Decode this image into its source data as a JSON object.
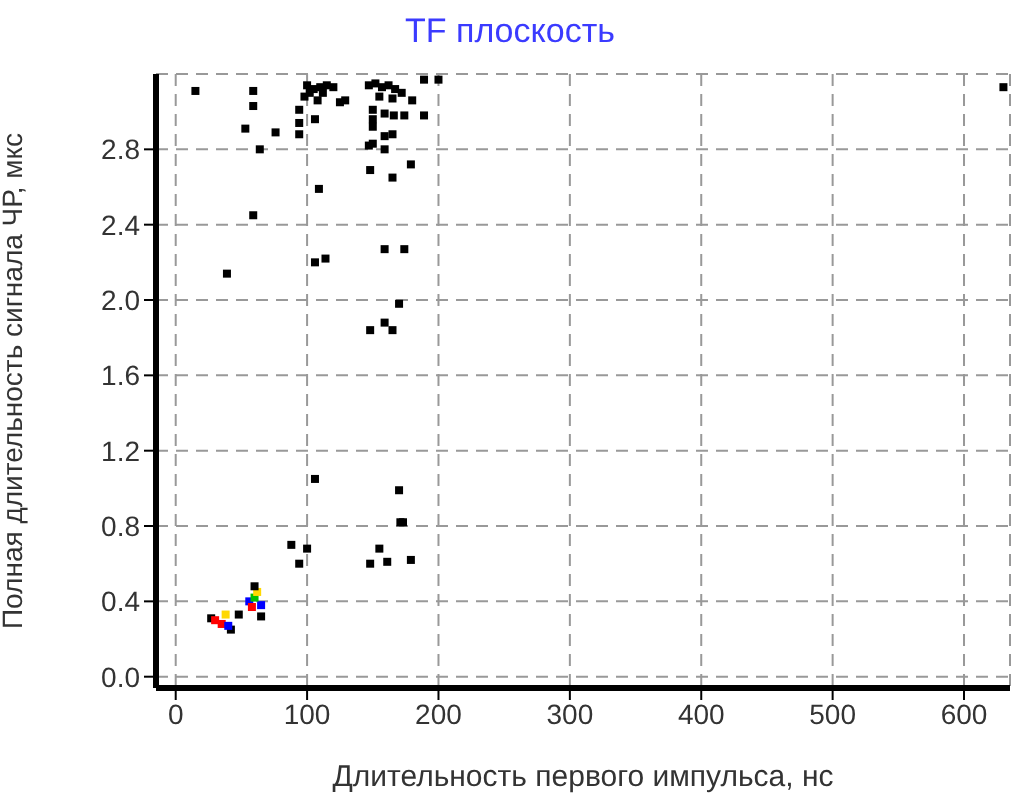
{
  "chart_data": {
    "type": "scatter",
    "title": "TF плоскость",
    "xlabel": "Длительность первого импульса, нс",
    "ylabel": "Полная длительность сигнала ЧР, мкс",
    "xlim": [
      -15,
      635
    ],
    "xticks": [
      0,
      100,
      200,
      300,
      400,
      500,
      600
    ],
    "ylim": [
      -0.06,
      3.2
    ],
    "yticks": [
      {
        "value": 0,
        "label": "0.0"
      },
      0.4,
      0.8,
      1.2,
      1.6,
      {
        "value": 2,
        "label": "2.0"
      },
      2.4,
      2.8
    ],
    "grid": true,
    "marker": "square",
    "x": [
      15,
      59,
      59,
      53,
      76,
      64,
      100,
      105,
      110,
      115,
      120,
      98,
      108,
      102,
      112,
      125,
      129,
      94,
      94,
      94,
      106,
      109,
      59,
      106,
      114,
      39,
      147,
      152,
      157,
      162,
      167,
      172,
      155,
      165,
      189,
      200,
      180,
      150,
      150,
      150,
      150,
      159,
      166,
      174,
      189,
      165,
      159,
      159,
      147,
      148,
      165,
      179,
      159,
      174,
      170,
      148,
      159,
      165,
      106,
      170,
      171,
      173,
      88,
      100,
      94,
      155,
      148,
      161,
      179,
      48,
      27,
      42,
      30,
      35,
      38,
      40,
      56,
      65,
      60,
      62,
      58,
      60,
      65,
      630
    ],
    "values": [
      3.11,
      3.11,
      3.03,
      2.91,
      2.89,
      2.8,
      3.14,
      3.12,
      3.13,
      3.14,
      3.13,
      3.08,
      3.06,
      3.1,
      3.1,
      3.05,
      3.06,
      3.01,
      2.94,
      2.88,
      2.96,
      2.59,
      2.45,
      2.2,
      2.22,
      2.14,
      3.14,
      3.15,
      3.13,
      3.14,
      3.12,
      3.1,
      3.08,
      3.07,
      3.17,
      3.17,
      3.06,
      3.01,
      2.96,
      2.92,
      2.83,
      2.99,
      2.98,
      2.98,
      2.98,
      2.88,
      2.87,
      2.8,
      2.82,
      2.69,
      2.65,
      2.72,
      2.27,
      2.27,
      1.98,
      1.84,
      1.88,
      1.84,
      1.05,
      0.99,
      0.82,
      0.82,
      0.7,
      0.68,
      0.6,
      0.68,
      0.6,
      0.61,
      0.62,
      0.33,
      0.31,
      0.25,
      0.3,
      0.28,
      0.33,
      0.27,
      0.4,
      0.38,
      0.42,
      0.45,
      0.37,
      0.48,
      0.32,
      3.13
    ],
    "colors": [
      "#000000",
      "#000000",
      "#000000",
      "#000000",
      "#000000",
      "#000000",
      "#000000",
      "#000000",
      "#000000",
      "#000000",
      "#000000",
      "#000000",
      "#000000",
      "#000000",
      "#000000",
      "#000000",
      "#000000",
      "#000000",
      "#000000",
      "#000000",
      "#000000",
      "#000000",
      "#000000",
      "#000000",
      "#000000",
      "#000000",
      "#000000",
      "#000000",
      "#000000",
      "#000000",
      "#000000",
      "#000000",
      "#000000",
      "#000000",
      "#000000",
      "#000000",
      "#000000",
      "#000000",
      "#000000",
      "#000000",
      "#000000",
      "#000000",
      "#000000",
      "#000000",
      "#000000",
      "#000000",
      "#000000",
      "#000000",
      "#000000",
      "#000000",
      "#000000",
      "#000000",
      "#000000",
      "#000000",
      "#000000",
      "#000000",
      "#000000",
      "#000000",
      "#000000",
      "#000000",
      "#000000",
      "#000000",
      "#000000",
      "#000000",
      "#000000",
      "#000000",
      "#000000",
      "#000000",
      "#000000",
      "#000000",
      "#000000",
      "#000000",
      "#ff0000",
      "#ff0000",
      "#ffd800",
      "#0000ff",
      "#0000ff",
      "#0000ff",
      "#00c000",
      "#ffd800",
      "#ff0000",
      "#000000",
      "#000000",
      "#000000"
    ]
  }
}
